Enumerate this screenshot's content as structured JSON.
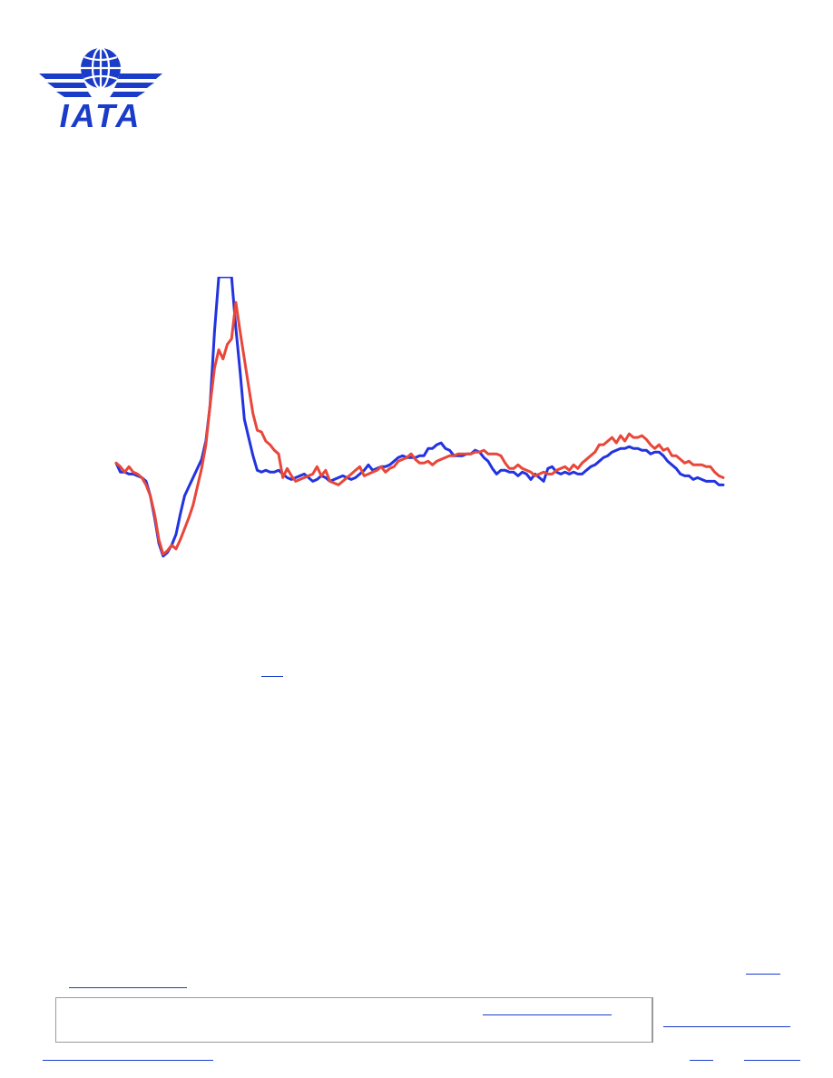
{
  "logo": {
    "text": "IATA",
    "color": "#1a3cc9"
  },
  "colors": {
    "series_blue": "#2233e0",
    "series_red": "#e8473a",
    "link": "#1a3cc9"
  },
  "chart_data": {
    "type": "line",
    "title": "",
    "xlabel": "",
    "ylabel": "",
    "grid": false,
    "legend": "none",
    "ylim": [
      -60,
      100
    ],
    "series": [
      {
        "color": "#2233e0",
        "values": [
          -2,
          -7,
          -7,
          -8,
          -8,
          -9,
          -10,
          -12,
          -20,
          -32,
          -46,
          -53,
          -51,
          -47,
          -41,
          -30,
          -20,
          -15,
          -10,
          -5,
          0,
          10,
          30,
          70,
          100,
          100,
          100,
          100,
          72,
          48,
          22,
          12,
          2,
          -6,
          -7,
          -6,
          -7,
          -7,
          -6,
          -8,
          -10,
          -11,
          -10,
          -9,
          -8,
          -10,
          -12,
          -11,
          -9,
          -10,
          -12,
          -11,
          -10,
          -9,
          -10,
          -11,
          -10,
          -8,
          -6,
          -3,
          -6,
          -5,
          -4,
          -4,
          -3,
          -1,
          1,
          2,
          1,
          1,
          1,
          2,
          2,
          6,
          6,
          8,
          9,
          6,
          5,
          2,
          2,
          2,
          3,
          3,
          5,
          4,
          1,
          -1,
          -5,
          -8,
          -6,
          -6,
          -7,
          -7,
          -9,
          -7,
          -8,
          -11,
          -8,
          -10,
          -12,
          -5,
          -4,
          -7,
          -8,
          -7,
          -8,
          -7,
          -8,
          -8,
          -6,
          -4,
          -3,
          -1,
          1,
          2,
          4,
          5,
          6,
          6,
          7,
          6,
          6,
          5,
          5,
          3,
          4,
          4,
          2,
          -1,
          -3,
          -5,
          -8,
          -9,
          -9,
          -11,
          -10,
          -11,
          -12,
          -12,
          -12,
          -14,
          -14
        ]
      },
      {
        "color": "#e8473a",
        "values": [
          -2,
          -4,
          -7,
          -4,
          -7,
          -8,
          -10,
          -14,
          -20,
          -30,
          -44,
          -52,
          -50,
          -47,
          -49,
          -44,
          -38,
          -32,
          -25,
          -15,
          -5,
          8,
          30,
          50,
          60,
          55,
          63,
          66,
          86,
          70,
          55,
          40,
          25,
          16,
          15,
          10,
          8,
          5,
          3,
          -10,
          -5,
          -9,
          -12,
          -11,
          -10,
          -9,
          -8,
          -4,
          -9,
          -6,
          -12,
          -13,
          -14,
          -12,
          -10,
          -8,
          -6,
          -4,
          -9,
          -8,
          -7,
          -6,
          -4,
          -7,
          -5,
          -4,
          -1,
          0,
          1,
          3,
          0,
          -2,
          -2,
          -1,
          -3,
          -1,
          0,
          1,
          2,
          2,
          3,
          3,
          3,
          3,
          4,
          4,
          5,
          3,
          3,
          3,
          2,
          -2,
          -5,
          -5,
          -3,
          -5,
          -6,
          -7,
          -9,
          -8,
          -7,
          -8,
          -8,
          -6,
          -5,
          -4,
          -6,
          -3,
          -5,
          -2,
          0,
          2,
          4,
          8,
          8,
          10,
          12,
          9,
          13,
          10,
          14,
          12,
          12,
          13,
          11,
          8,
          6,
          8,
          5,
          6,
          2,
          2,
          0,
          -2,
          -1,
          -3,
          -3,
          -3,
          -4,
          -4,
          -7,
          -9,
          -10
        ]
      }
    ]
  }
}
